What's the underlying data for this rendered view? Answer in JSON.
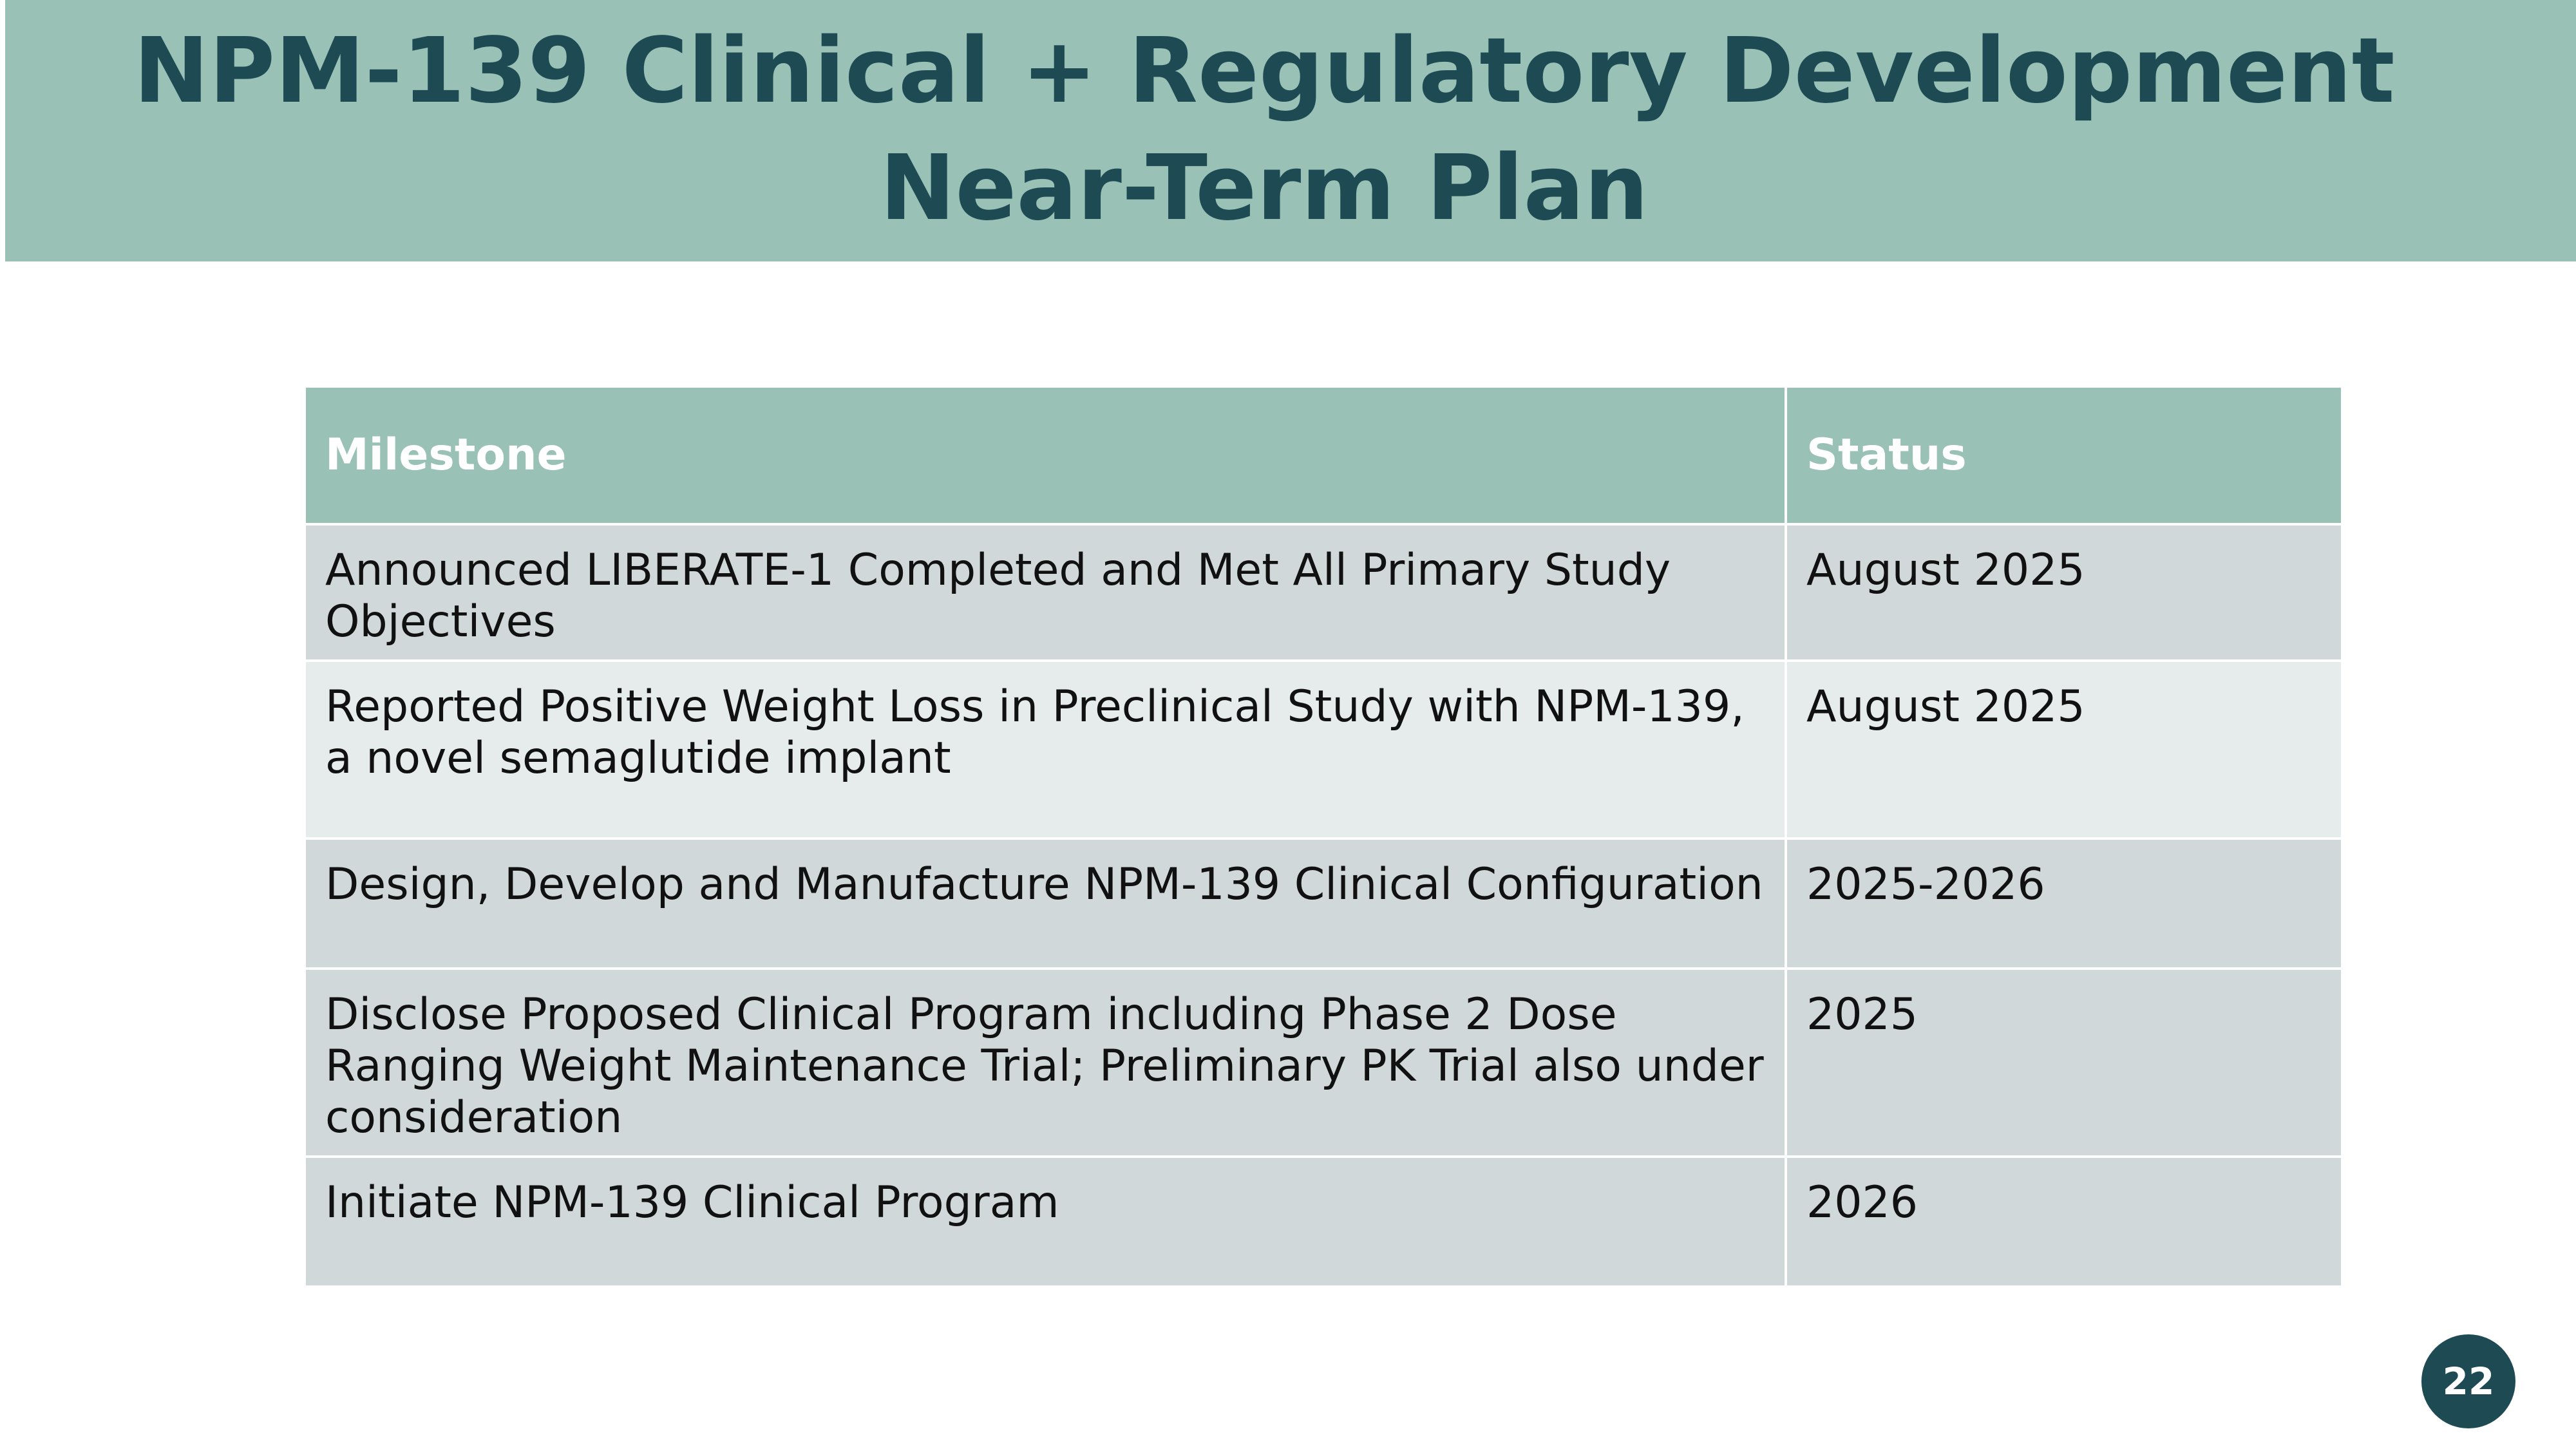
{
  "slide": {
    "title_line1": "NPM-139 Clinical + Regulatory Development",
    "title_line2": "Near-Term Plan",
    "page_number": "22"
  },
  "table": {
    "headers": {
      "milestone": "Milestone",
      "status": "Status"
    },
    "rows": [
      {
        "milestone": "Announced LIBERATE-1 Completed and Met All Primary Study Objectives",
        "status": "August 2025"
      },
      {
        "milestone": "Reported Positive Weight Loss in Preclinical Study with NPM-139, a novel semaglutide implant",
        "status": "August 2025"
      },
      {
        "milestone": "Design, Develop and Manufacture NPM-139 Clinical Configuration",
        "status": "2025-2026"
      },
      {
        "milestone": "Disclose Proposed Clinical Program including Phase 2 Dose Ranging Weight Maintenance Trial; Preliminary PK Trial also under consideration",
        "status": "2025"
      },
      {
        "milestone": "Initiate NPM-139 Clinical Program",
        "status": "2026"
      }
    ]
  },
  "colors": {
    "header_band": "#9ac1b6",
    "title_text": "#1e4a54",
    "row_dark": "#d0d8d9",
    "row_light": "#e6ecec",
    "badge": "#1e4a54"
  }
}
